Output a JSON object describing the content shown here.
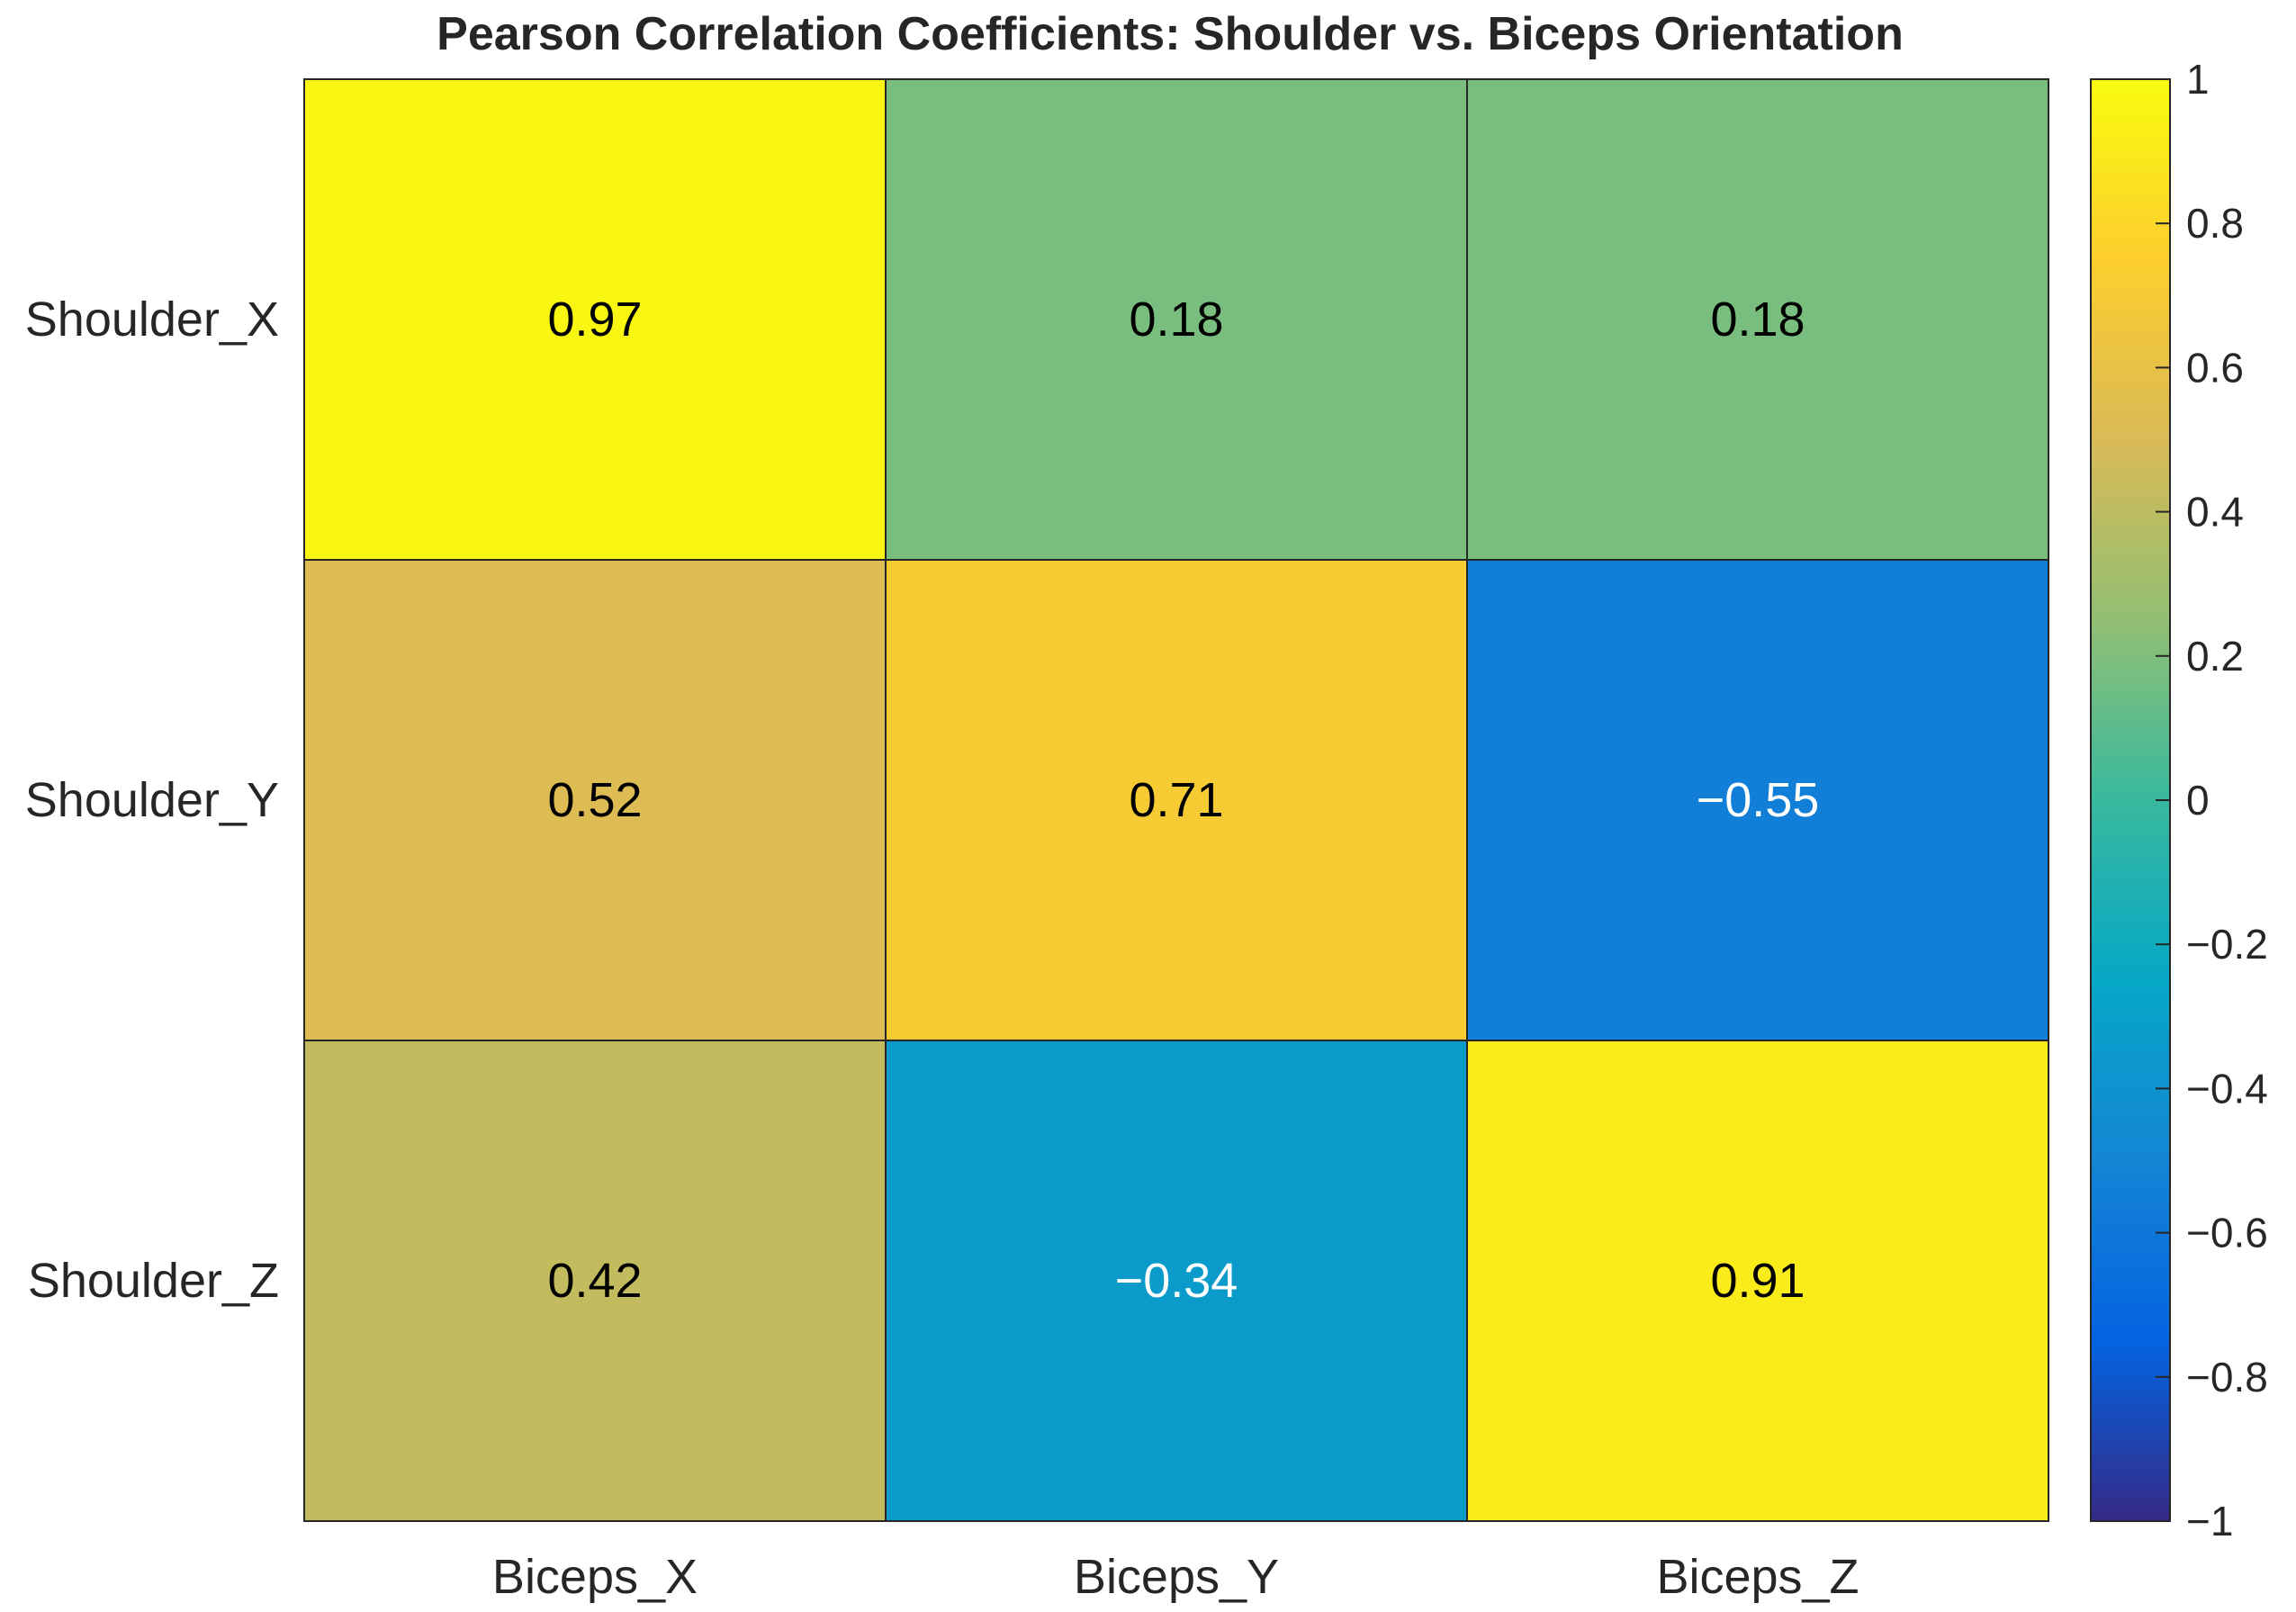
{
  "chart_data": {
    "type": "heatmap",
    "title": "Pearson Correlation Coefficients: Shoulder vs. Biceps Orientation",
    "x_categories": [
      "Biceps_X",
      "Biceps_Y",
      "Biceps_Z"
    ],
    "y_categories": [
      "Shoulder_X",
      "Shoulder_Y",
      "Shoulder_Z"
    ],
    "values": [
      [
        0.97,
        0.18,
        0.18
      ],
      [
        0.52,
        0.71,
        -0.55
      ],
      [
        0.42,
        -0.34,
        0.91
      ]
    ],
    "value_labels": [
      [
        "0.97",
        "0.18",
        "0.18"
      ],
      [
        "0.52",
        "0.71",
        "−0.55"
      ],
      [
        "0.42",
        "−0.34",
        "0.91"
      ]
    ],
    "colorbar": {
      "range": [
        -1,
        1
      ],
      "colormap": "parula",
      "ticks": [
        1,
        0.8,
        0.6,
        0.4,
        0.2,
        0,
        -0.2,
        -0.4,
        -0.6,
        -0.8,
        -1
      ],
      "tick_labels": [
        "1",
        "0.8",
        "0.6",
        "0.4",
        "0.2",
        "0",
        "−0.2",
        "−0.4",
        "−0.6",
        "−0.8",
        "−1"
      ]
    },
    "colors": {
      "grid_line": "#262626",
      "text_dark": "#000000",
      "text_light": "#ffffff",
      "axis_text": "#262626"
    }
  }
}
